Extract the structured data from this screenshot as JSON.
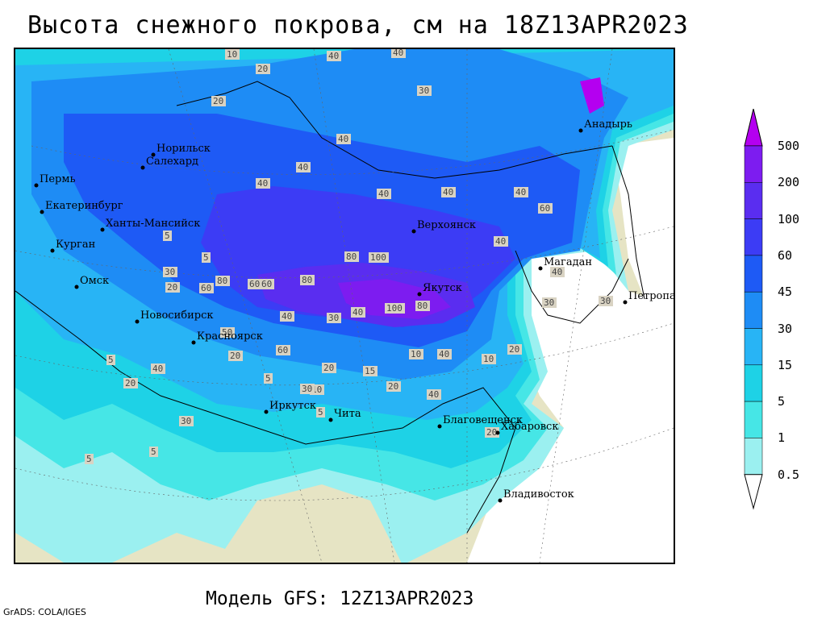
{
  "title": "Высота снежного покрова, см на 18Z13APR2023",
  "footer": "Модель GFS: 12Z13APR2023",
  "credit": "GrADS: COLA/IGES",
  "legend": {
    "levels": [
      "500",
      "200",
      "100",
      "60",
      "45",
      "30",
      "15",
      "5",
      "1",
      "0.5"
    ],
    "colors": [
      "#b400f0",
      "#7d1cf0",
      "#5a2df0",
      "#3c3cf5",
      "#1e5af5",
      "#1e8cf5",
      "#28b4f5",
      "#1ed2e6",
      "#46e6e6",
      "#9bf0f0"
    ]
  },
  "map": {
    "land_color": "#e6e4c4",
    "ocean_color": "#ffffff",
    "cities": [
      {
        "name": "Норильск"
      },
      {
        "name": "Салехард"
      },
      {
        "name": "Пермь"
      },
      {
        "name": "Екатеринбург"
      },
      {
        "name": "Ханты-Мансийск"
      },
      {
        "name": "Курган"
      },
      {
        "name": "Омск"
      },
      {
        "name": "Новосибирск"
      },
      {
        "name": "Красноярск"
      },
      {
        "name": "Иркутск"
      },
      {
        "name": "Чита"
      },
      {
        "name": "Верхоянск"
      },
      {
        "name": "Якутск"
      },
      {
        "name": "Магадан"
      },
      {
        "name": "Анадырь"
      },
      {
        "name": "Петропавловск-Камчатский"
      },
      {
        "name": "Благовещенск"
      },
      {
        "name": "Хабаровск"
      },
      {
        "name": "Владивосток"
      }
    ],
    "contour_labels": [
      "10",
      "20",
      "40",
      "40",
      "30",
      "20",
      "40",
      "40",
      "40",
      "40",
      "40",
      "60",
      "80",
      "100",
      "60",
      "60",
      "80",
      "100",
      "30",
      "40",
      "20",
      "5",
      "5",
      "10",
      "20",
      "15",
      "5",
      "20",
      "30",
      "40",
      "40",
      "20",
      "10",
      "5",
      "5",
      "50",
      "30",
      "40",
      "40",
      "20",
      "60",
      "80",
      "20",
      "40",
      "30",
      "30",
      "5",
      "5",
      "20",
      "30",
      "10",
      "40",
      "40",
      "60",
      "80"
    ]
  }
}
